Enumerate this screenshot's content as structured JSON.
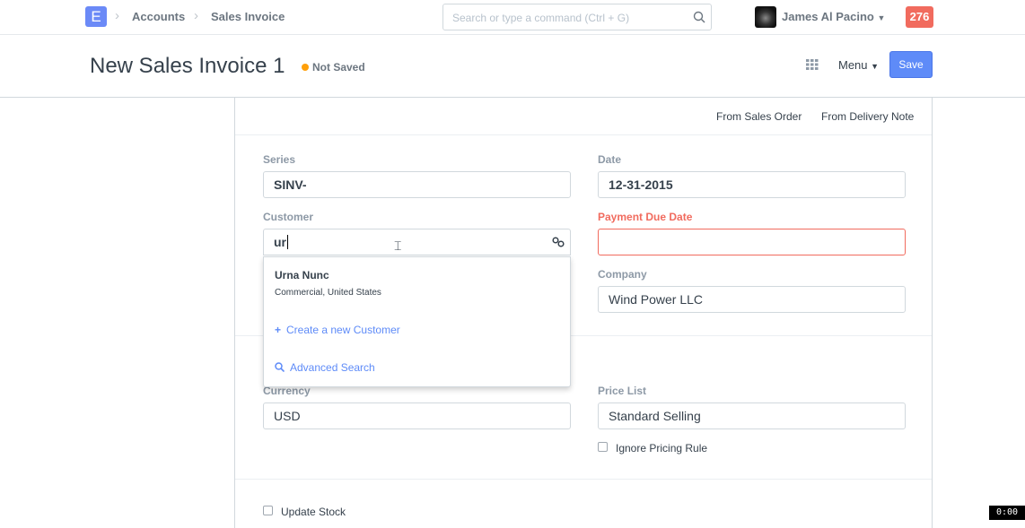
{
  "nav": {
    "logo": "E",
    "breadcrumbs": [
      "Accounts",
      "Sales Invoice"
    ],
    "search_placeholder": "Search or type a command (Ctrl + G)",
    "user": "James Al Pacino",
    "notifications": "276"
  },
  "header": {
    "title": "New Sales Invoice 1",
    "status": "Not Saved",
    "menu": "Menu",
    "save": "Save"
  },
  "strip": {
    "from_sales_order": "From Sales Order",
    "from_delivery_note": "From Delivery Note"
  },
  "fields": {
    "series_label": "Series",
    "series": "SINV-",
    "date_label": "Date",
    "date": "12-31-2015",
    "customer_label": "Customer",
    "customer": "ur",
    "due_label": "Payment Due Date",
    "company_label": "Company",
    "company": "Wind Power LLC",
    "currency_label": "Currency",
    "currency": "USD",
    "price_list_label": "Price List",
    "price_list": "Standard Selling",
    "ignore_pricing": "Ignore Pricing Rule",
    "update_stock": "Update Stock"
  },
  "dropdown": {
    "name": "Urna Nunc",
    "desc": "Commercial, United States",
    "create": "Create a new Customer",
    "advanced": "Advanced Search"
  },
  "timer": "0:00",
  "colors": {
    "accent": "#5e8bf8",
    "error": "#f16b5e",
    "badge": "#f16b5e",
    "status_dot": "#ffa00a"
  }
}
